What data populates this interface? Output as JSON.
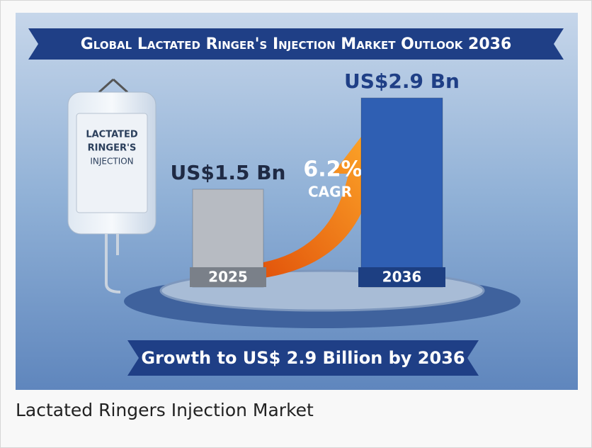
{
  "chart_data": {
    "type": "bar",
    "title": "Global Lactated Ringer's Injection Market Outlook 2036",
    "categories": [
      "2025",
      "2036"
    ],
    "values": [
      1.5,
      2.9
    ],
    "value_labels": [
      "US$1.5 Bn",
      "US$2.9 Bn"
    ],
    "colors": [
      "#b7bbc2",
      "#2f5fb3"
    ],
    "annotation": {
      "value": "6.2%",
      "label": "CAGR"
    },
    "banner": "Growth to US$ 2.9 Billion by 2036",
    "product_label": [
      "LACTATED",
      "RINGER'S",
      "INJECTION"
    ]
  },
  "caption": "Lactated Ringers Injection Market"
}
